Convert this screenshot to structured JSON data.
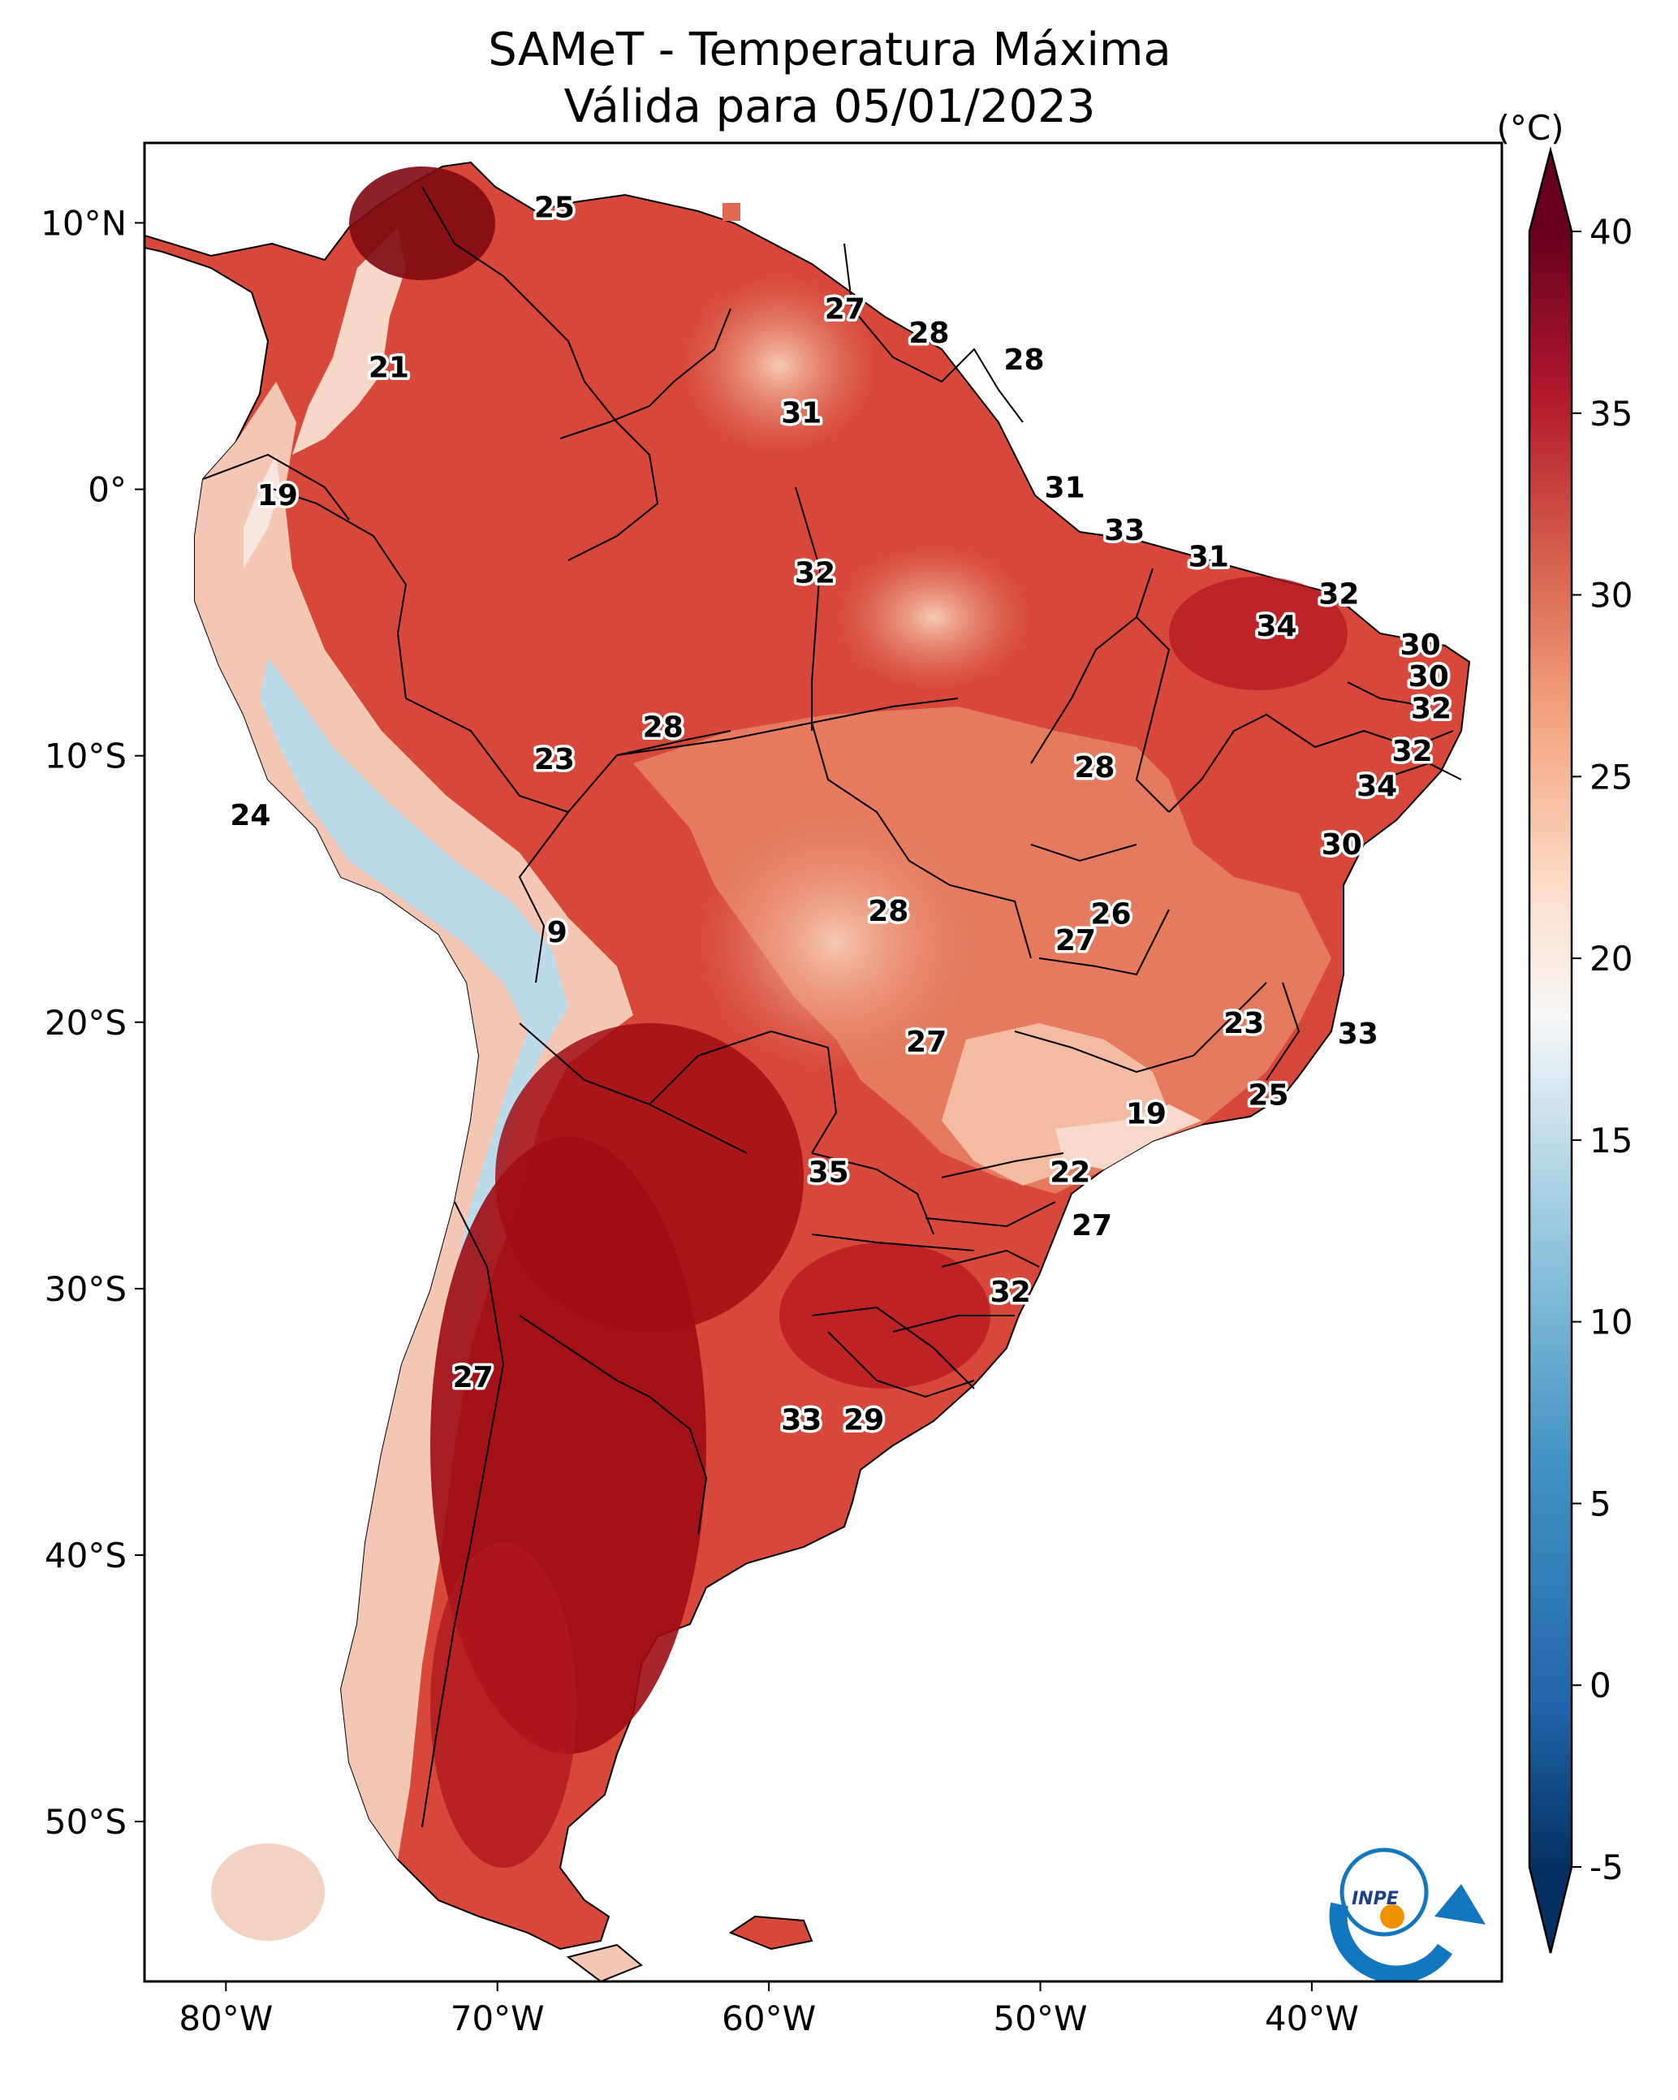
{
  "title": {
    "line1": "SAMeT - Temperatura Máxima",
    "line2": "Válida para 05/01/2023"
  },
  "map": {
    "lon_range": [
      -83,
      -33
    ],
    "lat_range": [
      -56,
      13
    ],
    "lon_ticks": [
      {
        "v": -80,
        "label": "80°W"
      },
      {
        "v": -70,
        "label": "70°W"
      },
      {
        "v": -60,
        "label": "60°W"
      },
      {
        "v": -50,
        "label": "50°W"
      },
      {
        "v": -40,
        "label": "40°W"
      }
    ],
    "lat_ticks": [
      {
        "v": 10,
        "label": "10°N"
      },
      {
        "v": 0,
        "label": "0°"
      },
      {
        "v": -10,
        "label": "10°S"
      },
      {
        "v": -20,
        "label": "20°S"
      },
      {
        "v": -30,
        "label": "30°S"
      },
      {
        "v": -40,
        "label": "40°S"
      },
      {
        "v": -50,
        "label": "50°S"
      }
    ],
    "labels": [
      {
        "lon": -67.9,
        "lat": 10.6,
        "text": "25"
      },
      {
        "lon": -57.2,
        "lat": 6.8,
        "text": "27"
      },
      {
        "lon": -54.1,
        "lat": 5.9,
        "text": "28"
      },
      {
        "lon": -50.6,
        "lat": 4.9,
        "text": "28"
      },
      {
        "lon": -74.0,
        "lat": 4.6,
        "text": "21"
      },
      {
        "lon": -58.8,
        "lat": 2.9,
        "text": "31"
      },
      {
        "lon": -49.1,
        "lat": 0.1,
        "text": "31"
      },
      {
        "lon": -78.1,
        "lat": -0.2,
        "text": "19"
      },
      {
        "lon": -46.9,
        "lat": -1.5,
        "text": "33"
      },
      {
        "lon": -58.3,
        "lat": -3.1,
        "text": "32"
      },
      {
        "lon": -43.8,
        "lat": -2.5,
        "text": "31"
      },
      {
        "lon": -39.0,
        "lat": -3.9,
        "text": "32"
      },
      {
        "lon": -41.3,
        "lat": -5.1,
        "text": "34"
      },
      {
        "lon": -36.0,
        "lat": -5.8,
        "text": "30"
      },
      {
        "lon": -35.7,
        "lat": -7.0,
        "text": "30"
      },
      {
        "lon": -35.6,
        "lat": -8.2,
        "text": "32"
      },
      {
        "lon": -36.3,
        "lat": -9.8,
        "text": "32"
      },
      {
        "lon": -37.6,
        "lat": -11.1,
        "text": "34"
      },
      {
        "lon": -63.9,
        "lat": -8.9,
        "text": "28"
      },
      {
        "lon": -67.9,
        "lat": -10.1,
        "text": "23"
      },
      {
        "lon": -48.0,
        "lat": -10.4,
        "text": "28"
      },
      {
        "lon": -79.1,
        "lat": -12.2,
        "text": "24"
      },
      {
        "lon": -38.9,
        "lat": -13.3,
        "text": "30"
      },
      {
        "lon": -55.6,
        "lat": -15.8,
        "text": "28"
      },
      {
        "lon": -47.4,
        "lat": -15.9,
        "text": "26"
      },
      {
        "lon": -48.7,
        "lat": -16.9,
        "text": "27"
      },
      {
        "lon": -67.8,
        "lat": -16.6,
        "text": "9"
      },
      {
        "lon": -54.2,
        "lat": -20.7,
        "text": "27"
      },
      {
        "lon": -42.5,
        "lat": -20.0,
        "text": "23"
      },
      {
        "lon": -38.3,
        "lat": -20.4,
        "text": "33"
      },
      {
        "lon": -41.6,
        "lat": -22.7,
        "text": "25"
      },
      {
        "lon": -46.1,
        "lat": -23.4,
        "text": "19"
      },
      {
        "lon": -57.8,
        "lat": -25.6,
        "text": "35"
      },
      {
        "lon": -48.9,
        "lat": -25.6,
        "text": "22"
      },
      {
        "lon": -48.1,
        "lat": -27.6,
        "text": "27"
      },
      {
        "lon": -51.1,
        "lat": -30.1,
        "text": "32"
      },
      {
        "lon": -70.9,
        "lat": -33.3,
        "text": "27"
      },
      {
        "lon": -58.8,
        "lat": -34.9,
        "text": "33"
      },
      {
        "lon": -56.5,
        "lat": -34.9,
        "text": "29"
      }
    ]
  },
  "colorbar": {
    "unit": "(°C)",
    "min": -5,
    "max": 40,
    "ticks": [
      {
        "v": -5,
        "label": "-5"
      },
      {
        "v": 0,
        "label": "0"
      },
      {
        "v": 5,
        "label": "5"
      },
      {
        "v": 10,
        "label": "10"
      },
      {
        "v": 15,
        "label": "15"
      },
      {
        "v": 20,
        "label": "20"
      },
      {
        "v": 25,
        "label": "25"
      },
      {
        "v": 30,
        "label": "30"
      },
      {
        "v": 35,
        "label": "35"
      },
      {
        "v": 40,
        "label": "40"
      }
    ]
  },
  "logo": {
    "text": "INPE"
  },
  "colors": {
    "hot": "#a50f15",
    "warm": "#e0694f",
    "mild": "#f4b49a",
    "cool": "#bcdcec",
    "cold": "#5e9ec8"
  }
}
